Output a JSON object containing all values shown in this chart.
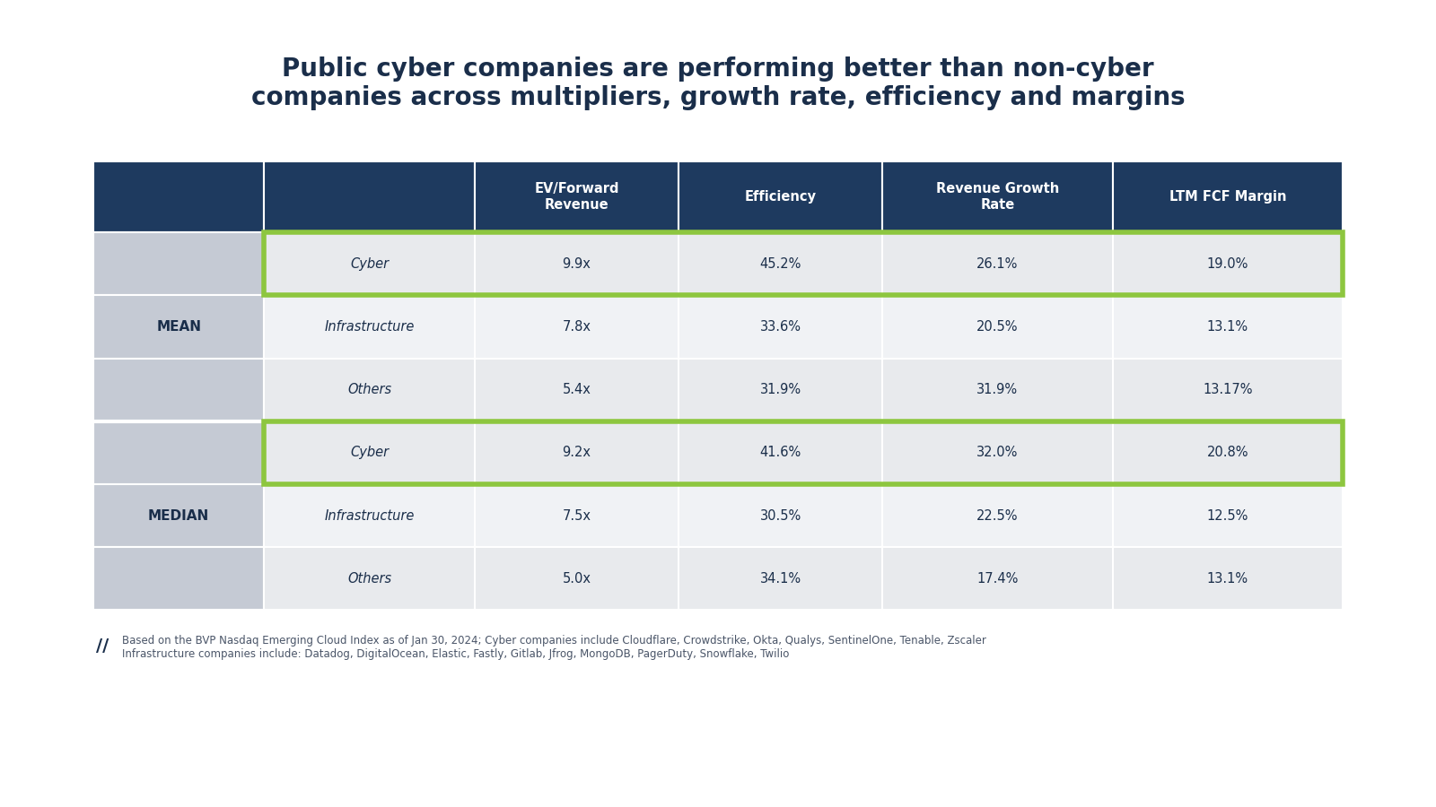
{
  "title": "Public cyber companies are performing better than non-cyber\ncompanies across multipliers, growth rate, efficiency and margins",
  "title_fontsize": 20,
  "background_color": "#ffffff",
  "header_bg_color": "#1e3a5f",
  "header_text_color": "#ffffff",
  "row_group_bg": "#d0d5dd",
  "row_cyber_bg": "#e8eaed",
  "row_infra_bg": "#f0f2f5",
  "row_others_bg": "#e8eaed",
  "green_highlight": "#8dc63f",
  "col_headers": [
    "EV/Forward\nRevenue",
    "Efficiency",
    "Revenue Growth\nRate",
    "LTM FCF Margin"
  ],
  "row_group_labels": [
    "MEAN",
    "MEDIAN"
  ],
  "row_labels": [
    "Cyber",
    "Infrastructure",
    "Others",
    "Cyber",
    "Infrastructure",
    "Others"
  ],
  "data": [
    [
      "9.9x",
      "45.2%",
      "26.1%",
      "19.0%"
    ],
    [
      "7.8x",
      "33.6%",
      "20.5%",
      "13.1%"
    ],
    [
      "5.4x",
      "31.9%",
      "31.9%",
      "13.17%"
    ],
    [
      "9.2x",
      "41.6%",
      "32.0%",
      "20.8%"
    ],
    [
      "7.5x",
      "30.5%",
      "22.5%",
      "12.5%"
    ],
    [
      "5.0x",
      "34.1%",
      "17.4%",
      "13.1%"
    ]
  ],
  "highlight_rows": [
    0,
    3
  ],
  "footnote_line1": "Based on the BVP Nasdaq Emerging Cloud Index as of Jan 30, 2024; Cyber companies include Cloudflare, Crowdstrike, Okta, Qualys, SentinelOne, Tenable, Zscaler",
  "footnote_line2": "Infrastructure companies include: Datadog, DigitalOcean, Elastic, Fastly, Gitlab, Jfrog, MongoDB, PagerDuty, Snowflake, Twilio"
}
